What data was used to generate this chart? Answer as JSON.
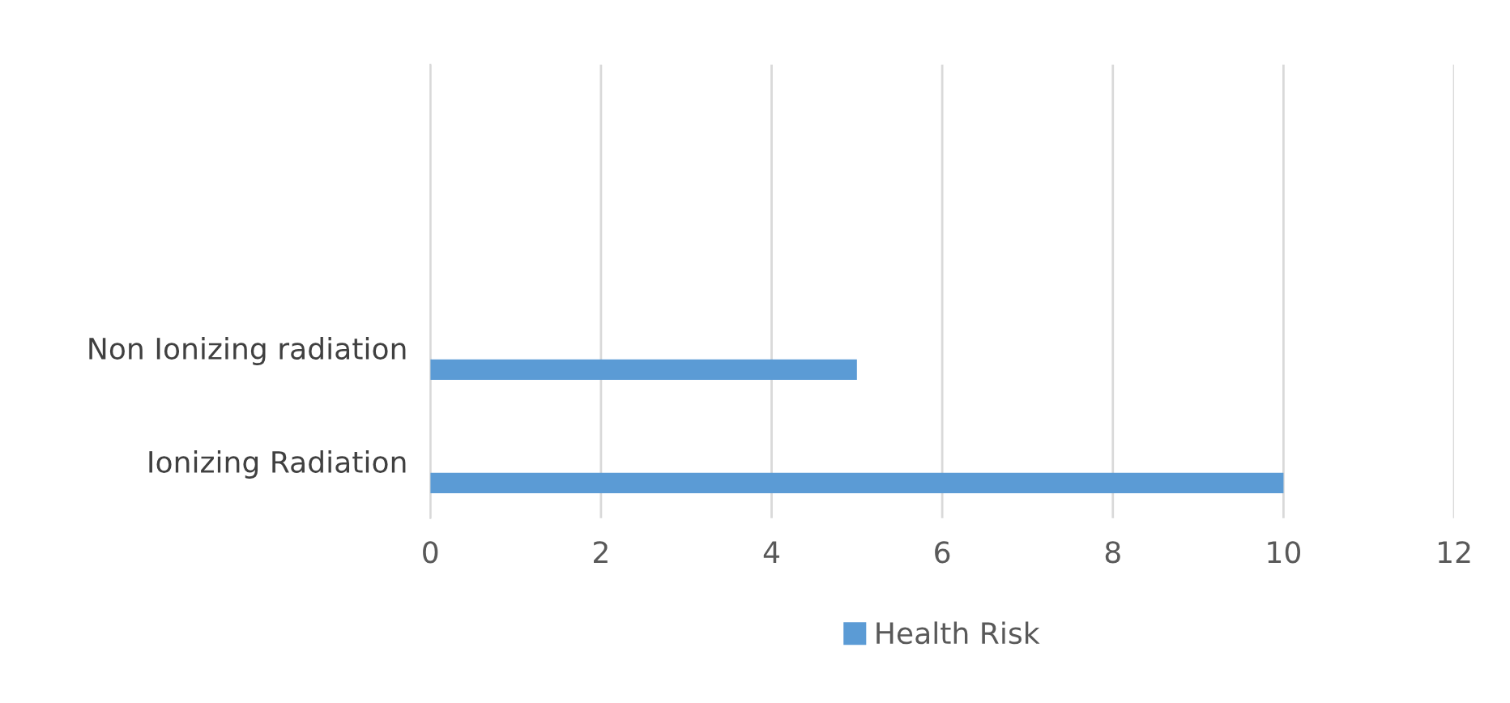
{
  "chart_data": {
    "type": "bar",
    "orientation": "horizontal",
    "categories": [
      null,
      null,
      "Non Ionizing radiation",
      "Ionizing Radiation"
    ],
    "series": [
      {
        "name": "Health Risk",
        "color": "#5b9bd5",
        "values": [
          null,
          null,
          5,
          10
        ]
      }
    ],
    "xlim": [
      0,
      12
    ],
    "xticks": [
      0,
      2,
      4,
      6,
      8,
      10,
      12
    ],
    "grid": "x",
    "legend": "bottom"
  }
}
